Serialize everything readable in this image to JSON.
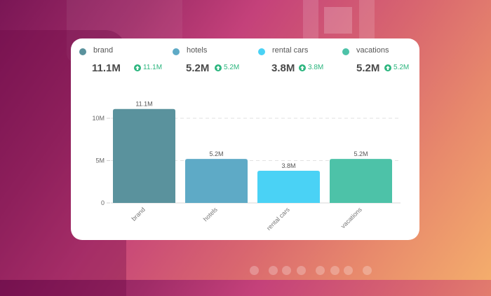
{
  "summary": [
    {
      "label": "brand",
      "value": "11.1M",
      "delta": "11.1M",
      "color": "#5a929d"
    },
    {
      "label": "hotels",
      "value": "5.2M",
      "delta": "5.2M",
      "color": "#5eaac6"
    },
    {
      "label": "rental cars",
      "value": "3.8M",
      "delta": "3.8M",
      "color": "#4ad2f5"
    },
    {
      "label": "vacations",
      "value": "5.2M",
      "delta": "5.2M",
      "color": "#4dc2a8"
    }
  ],
  "delta_color": "#2bb57e",
  "chart_data": {
    "type": "bar",
    "title": "",
    "xlabel": "",
    "ylabel": "",
    "categories": [
      "brand",
      "hotels",
      "rental cars",
      "vacations"
    ],
    "values": [
      11.1,
      5.2,
      3.8,
      5.2
    ],
    "value_labels": [
      "11.1M",
      "5.2M",
      "3.8M",
      "5.2M"
    ],
    "colors": [
      "#5a929d",
      "#5eaac6",
      "#4ad2f5",
      "#4dc2a8"
    ],
    "unit": "M",
    "ylim": [
      0,
      12
    ],
    "yticks": [
      0,
      5,
      10
    ],
    "ytick_labels": [
      "0",
      "5M",
      "10M"
    ],
    "grid": true,
    "legend": "top"
  },
  "pagination": {
    "count": 8,
    "active": -1
  }
}
